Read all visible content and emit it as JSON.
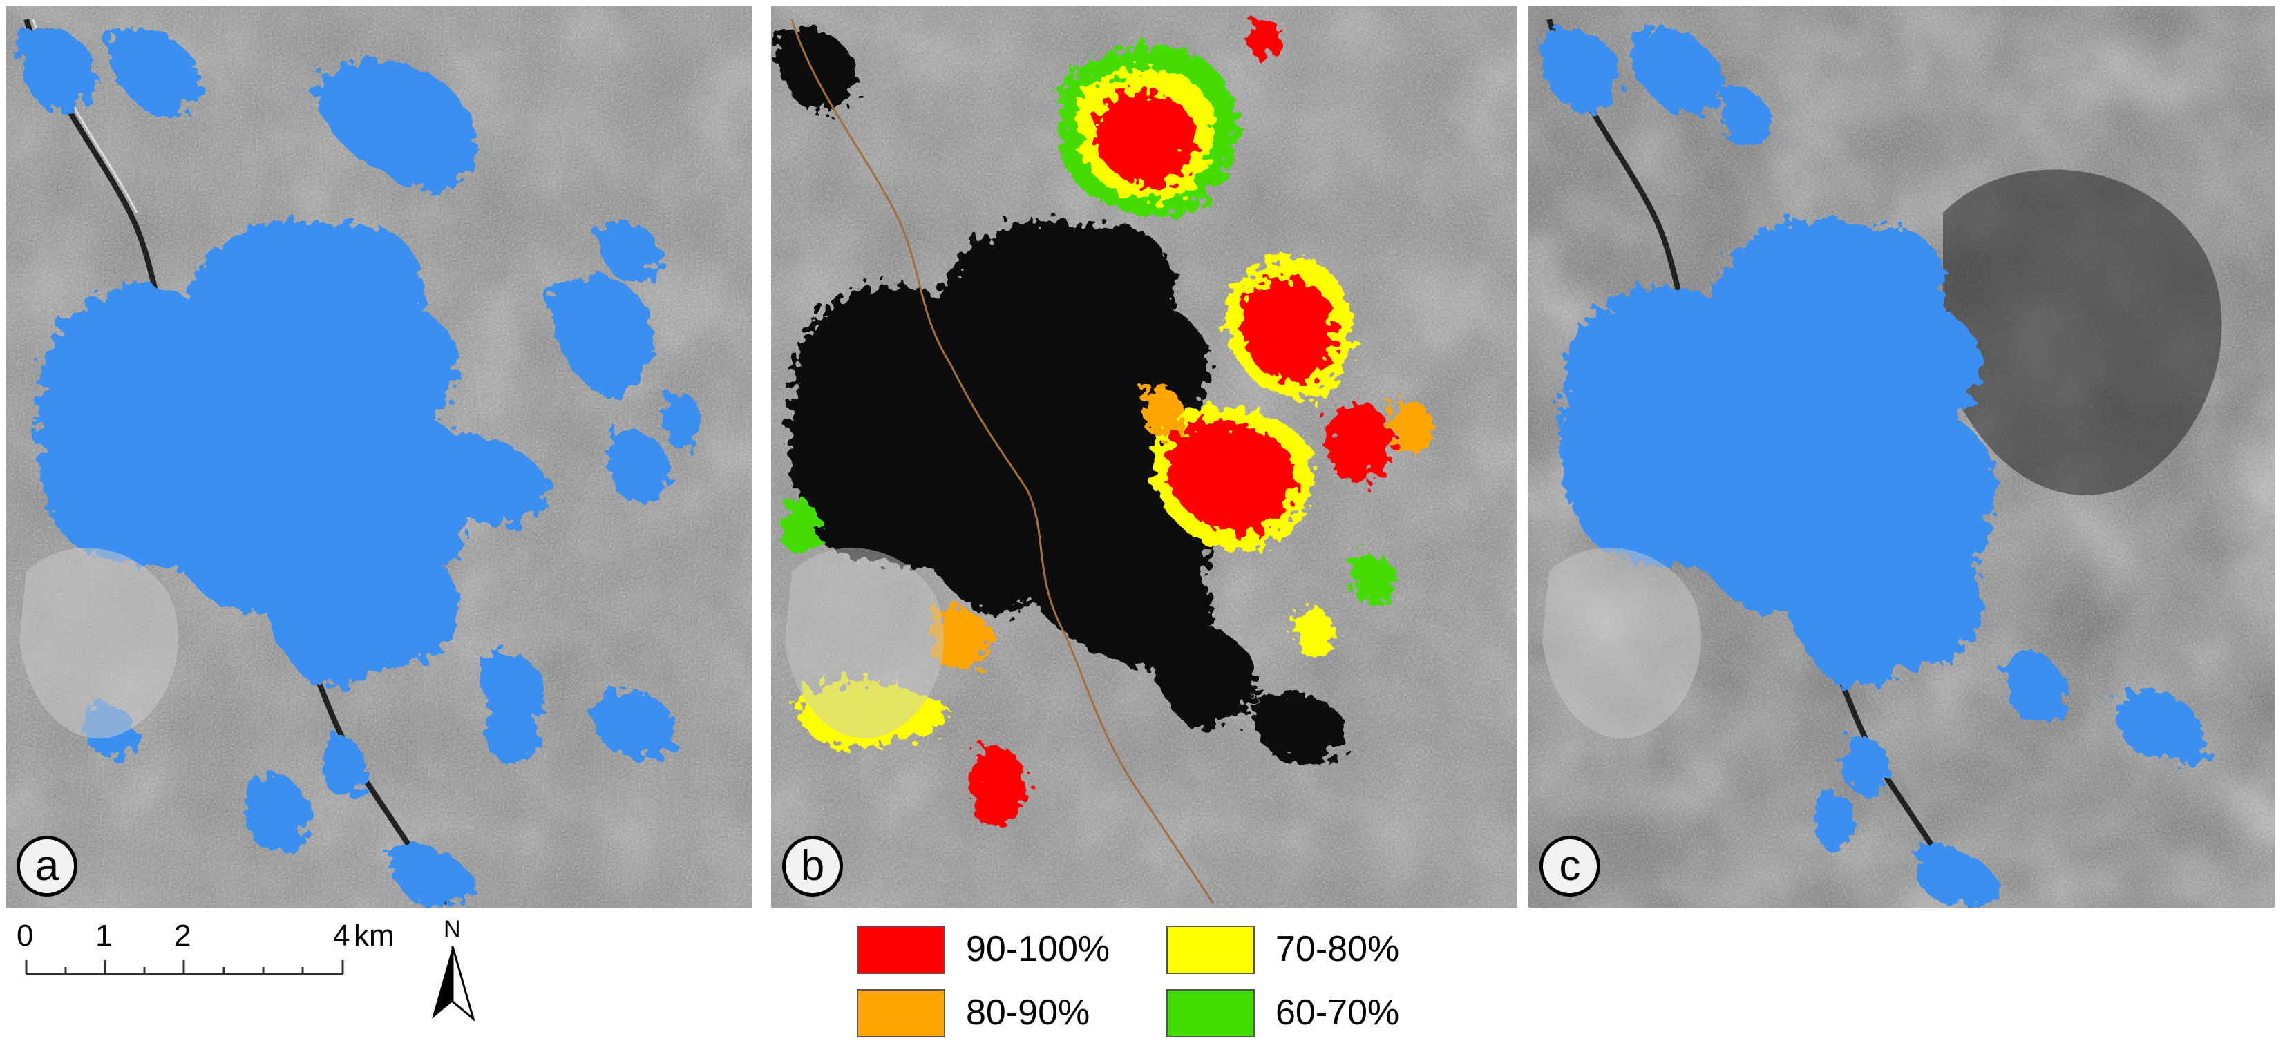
{
  "panels": [
    {
      "label": "a",
      "description_name": "flood-map-blue"
    },
    {
      "label": "b",
      "description_name": "probability-map"
    },
    {
      "label": "c",
      "description_name": "flood-map-blue-dark"
    }
  ],
  "colors": {
    "flood": "#3a8ff0",
    "p90_100": "#ff0000",
    "p80_90": "#ffa500",
    "p70_80": "#ffff00",
    "p60_70": "#44dd00",
    "sar_light": "#b4b4b4",
    "sar_dark": "#2a2a2a"
  },
  "scale_bar": {
    "ticks": [
      "0",
      "1",
      "2",
      "4"
    ],
    "unit": "km"
  },
  "north_arrow": {
    "label": "N"
  },
  "legend": {
    "items": [
      {
        "label": "90-100%",
        "color": "#ff0000"
      },
      {
        "label": "80-90%",
        "color": "#ffa500"
      },
      {
        "label": "70-80%",
        "color": "#ffff00"
      },
      {
        "label": "60-70%",
        "color": "#44dd00"
      }
    ]
  }
}
